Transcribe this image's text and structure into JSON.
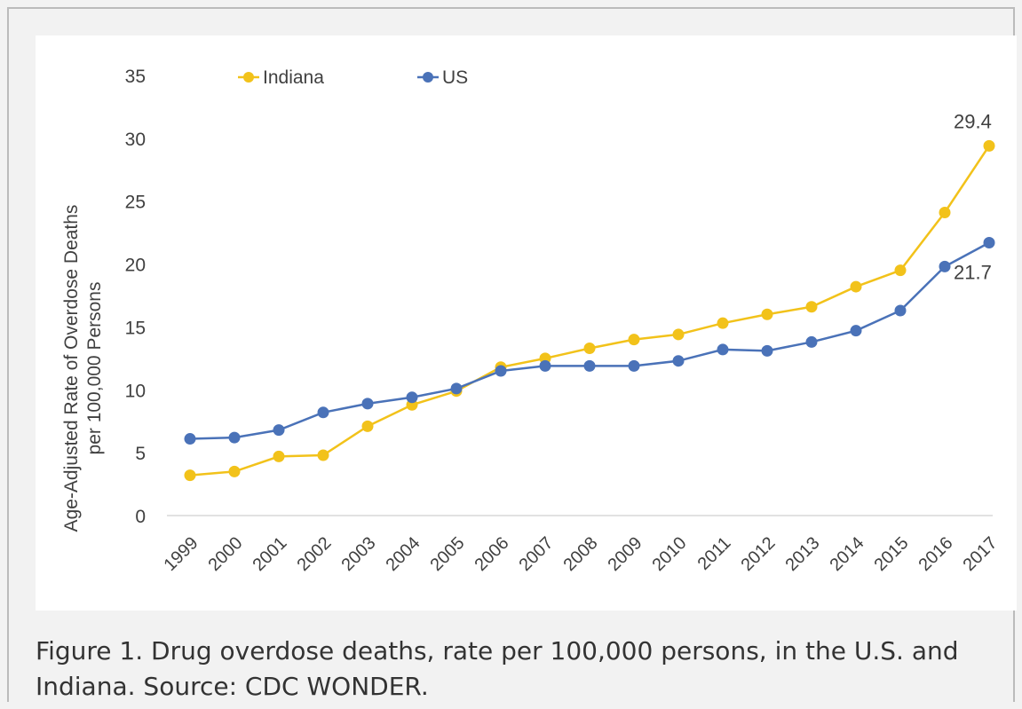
{
  "caption": "Figure 1. Drug overdose deaths, rate per 100,000 persons, in the U.S. and Indiana. Source: CDC WONDER.",
  "chart_data": {
    "type": "line",
    "title": "",
    "ylabel_line1": "Age-Adjusted Rate of Overdose Deaths",
    "ylabel_line2": "per 100,000 Persons",
    "xlabel": "",
    "ylim": [
      0,
      35
    ],
    "yticks": [
      "0",
      "5",
      "10",
      "15",
      "20",
      "25",
      "30",
      "35"
    ],
    "categories": [
      "1999",
      "2000",
      "2001",
      "2002",
      "2003",
      "2004",
      "2005",
      "2006",
      "2007",
      "2008",
      "2009",
      "2010",
      "2011",
      "2012",
      "2013",
      "2014",
      "2015",
      "2016",
      "2017"
    ],
    "grid": false,
    "legend_position": "top-left",
    "series": [
      {
        "name": "Indiana",
        "color": "#f2c21a",
        "values": [
          3.2,
          3.5,
          4.7,
          4.8,
          7.1,
          8.8,
          9.9,
          11.8,
          12.5,
          13.3,
          14.0,
          14.4,
          15.3,
          16.0,
          16.6,
          18.2,
          19.5,
          24.1,
          29.4
        ]
      },
      {
        "name": "US",
        "color": "#4a72b8",
        "values": [
          6.1,
          6.2,
          6.8,
          8.2,
          8.9,
          9.4,
          10.1,
          11.5,
          11.9,
          11.9,
          11.9,
          12.3,
          13.2,
          13.1,
          13.8,
          14.7,
          16.3,
          19.8,
          21.7
        ]
      }
    ],
    "annotations": [
      {
        "series": "Indiana",
        "category": "2017",
        "text": "29.4"
      },
      {
        "series": "US",
        "category": "2017",
        "text": "21.7"
      }
    ]
  }
}
